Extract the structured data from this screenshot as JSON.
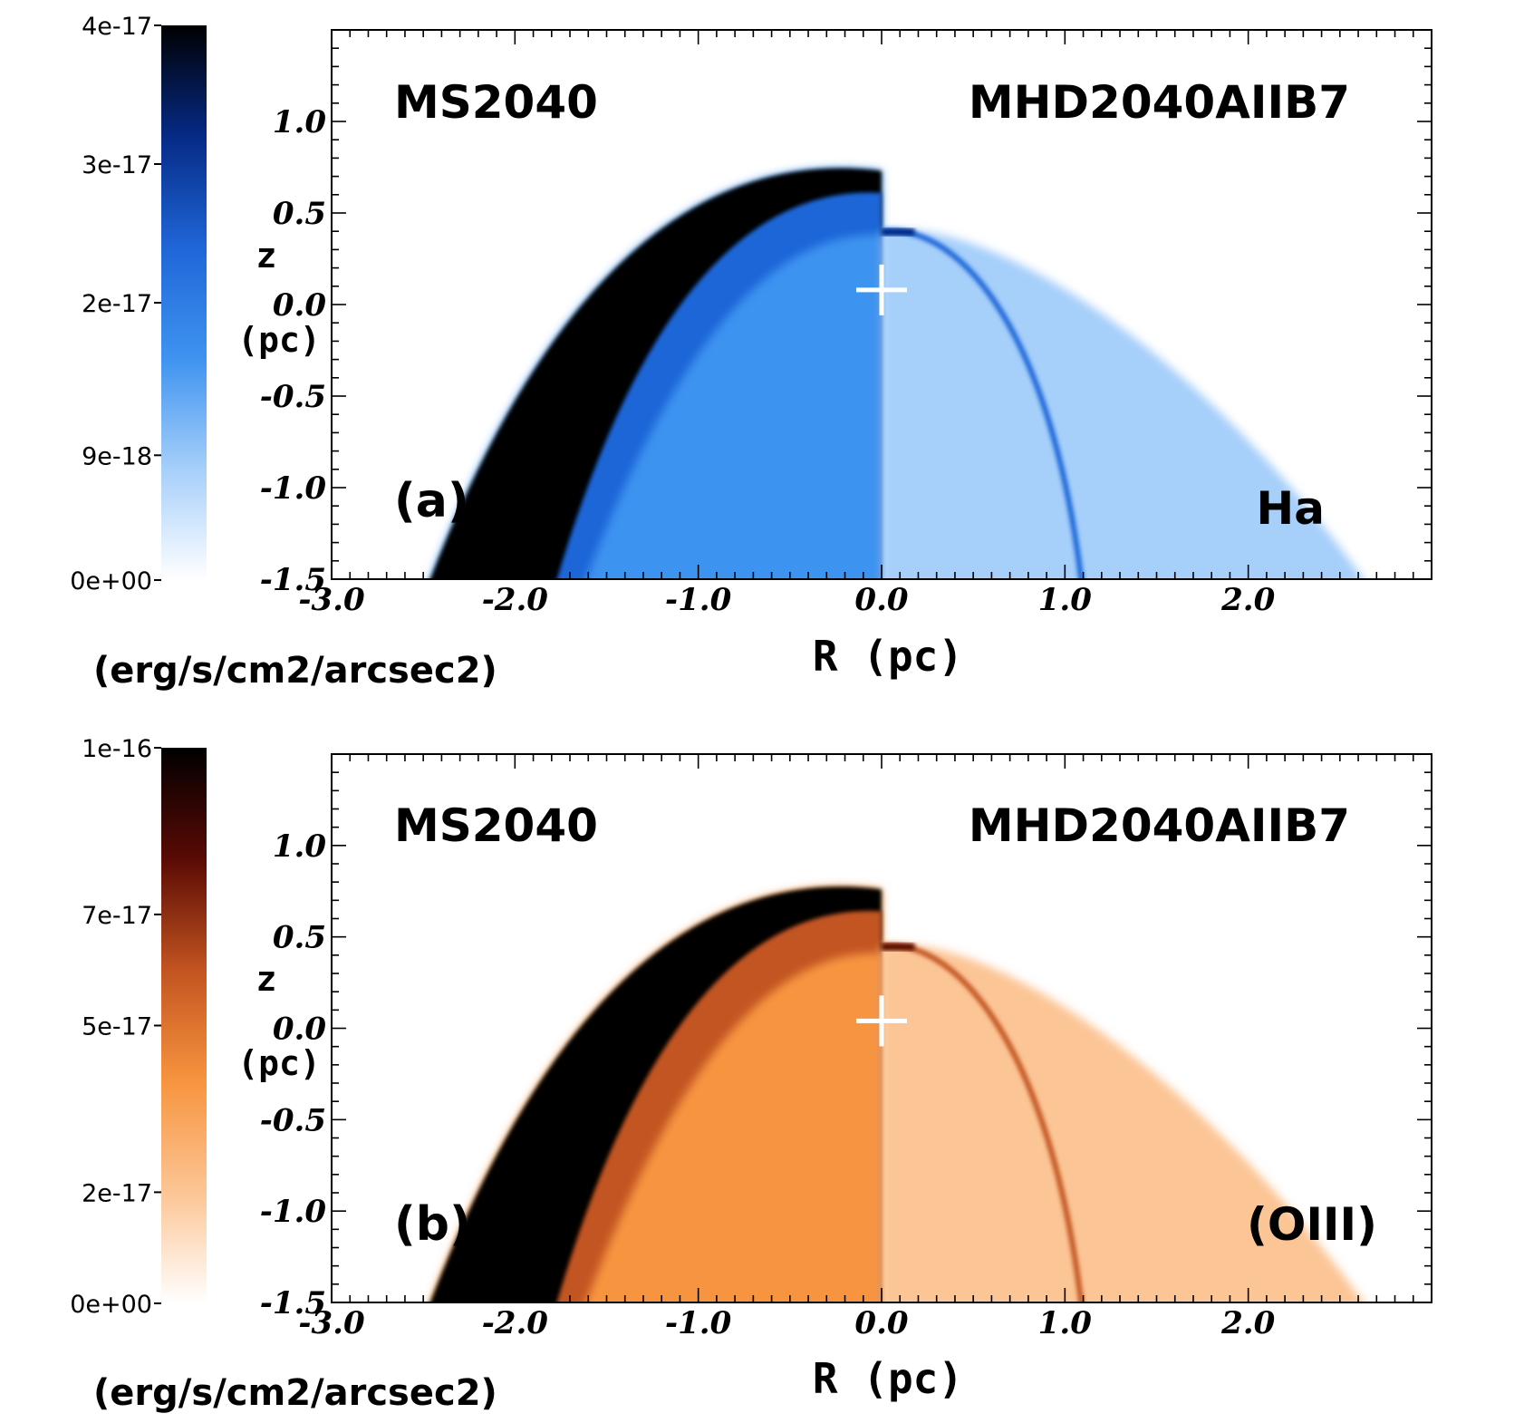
{
  "chart_data": [
    {
      "type": "heatmap",
      "panel": "(a)",
      "line": "Ha",
      "left_model": "MS2040",
      "right_model": "MHD2040AIIB7",
      "xlabel": "R (pc)",
      "ylabel": "z (pc)",
      "ylabel_parts": [
        "z",
        "(pc)"
      ],
      "xlim": [
        -3.0,
        3.0
      ],
      "ylim": [
        -1.5,
        1.5
      ],
      "xticks": [
        -3.0,
        -2.0,
        -1.0,
        0.0,
        1.0,
        2.0
      ],
      "xtick_labels": [
        "-3.0",
        "-2.0",
        "-1.0",
        "0.0",
        "1.0",
        "2.0"
      ],
      "yticks": [
        -1.5,
        -1.0,
        -0.5,
        0.0,
        0.5,
        1.0
      ],
      "ytick_labels": [
        "-1.5",
        "-1.0",
        "-0.5",
        "0.0",
        "0.5",
        "1.0"
      ],
      "star_position": [
        0.0,
        0.08
      ],
      "colorbar": {
        "label": "(erg/s/cm2/arcsec2)",
        "range": [
          0,
          4e-17
        ],
        "ticks": [
          0,
          9e-18,
          2e-17,
          3e-17,
          4e-17
        ],
        "tick_labels": [
          "0e+00",
          "9e-18",
          "2e-17",
          "3e-17",
          "4e-17"
        ],
        "colors": [
          "#ffffff",
          "#a6cffa",
          "#3e93f0",
          "#1f66d8",
          "#062a86",
          "#000000"
        ]
      },
      "shell_left": {
        "apex_z": 0.73,
        "base_R": -2.5,
        "edge_R": -1.8
      },
      "shell_right": {
        "apex_z": 0.4,
        "base_R": 2.7,
        "edge_R": 1.1
      }
    },
    {
      "type": "heatmap",
      "panel": "(b)",
      "line": "(OIII)",
      "left_model": "MS2040",
      "right_model": "MHD2040AIIB7",
      "xlabel": "R (pc)",
      "ylabel": "z (pc)",
      "ylabel_parts": [
        "z",
        "(pc)"
      ],
      "xlim": [
        -3.0,
        3.0
      ],
      "ylim": [
        -1.5,
        1.5
      ],
      "xticks": [
        -3.0,
        -2.0,
        -1.0,
        0.0,
        1.0,
        2.0
      ],
      "xtick_labels": [
        "-3.0",
        "-2.0",
        "-1.0",
        "0.0",
        "1.0",
        "2.0"
      ],
      "yticks": [
        -1.5,
        -1.0,
        -0.5,
        0.0,
        0.5,
        1.0
      ],
      "ytick_labels": [
        "-1.5",
        "-1.0",
        "-0.5",
        "0.0",
        "0.5",
        "1.0"
      ],
      "star_position": [
        0.0,
        0.04
      ],
      "colorbar": {
        "label": "(erg/s/cm2/arcsec2)",
        "range": [
          0,
          1e-16
        ],
        "ticks": [
          0,
          2e-17,
          5e-17,
          7e-17,
          1e-16
        ],
        "tick_labels": [
          "0e+00",
          "2e-17",
          "5e-17",
          "7e-17",
          "1e-16"
        ],
        "colors": [
          "#ffffff",
          "#fcc595",
          "#f7943f",
          "#c25420",
          "#5a0a05",
          "#000000"
        ]
      },
      "shell_left": {
        "apex_z": 0.76,
        "base_R": -2.5,
        "edge_R": -1.8
      },
      "shell_right": {
        "apex_z": 0.45,
        "base_R": 2.7,
        "edge_R": 1.1
      }
    }
  ]
}
